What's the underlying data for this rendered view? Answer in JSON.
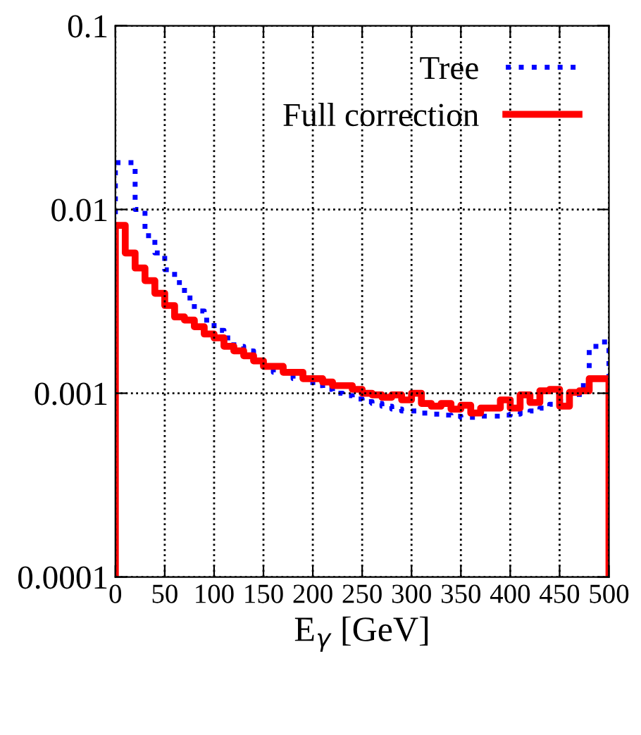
{
  "chart_data": {
    "type": "histogram",
    "xlabel": "E$_{γ}$ [GeV]",
    "bins": [
      0,
      10,
      20,
      30,
      40,
      50,
      60,
      70,
      80,
      90,
      100,
      110,
      120,
      130,
      140,
      150,
      160,
      170,
      180,
      190,
      200,
      210,
      220,
      230,
      240,
      250,
      260,
      270,
      280,
      290,
      300,
      310,
      320,
      330,
      340,
      350,
      360,
      370,
      380,
      390,
      400,
      410,
      420,
      430,
      440,
      450,
      460,
      470,
      480,
      490,
      500
    ],
    "series": [
      {
        "name": "Tree",
        "color": "#0000ff",
        "line_style": "dotted",
        "values": [
          0.018,
          0.018,
          0.01,
          0.0072,
          0.0058,
          0.0047,
          0.004,
          0.0033,
          0.0028,
          0.0025,
          0.0022,
          0.002,
          0.0018,
          0.0017,
          0.0015,
          0.0014,
          0.0013,
          0.0013,
          0.0012,
          0.0012,
          0.0011,
          0.00105,
          0.001,
          0.00097,
          0.00093,
          0.0009,
          0.00088,
          0.00085,
          0.00082,
          0.0008,
          0.0008,
          0.00078,
          0.00077,
          0.00076,
          0.00075,
          0.00074,
          0.00074,
          0.00075,
          0.00075,
          0.00076,
          0.00077,
          0.00078,
          0.0008,
          0.00083,
          0.00087,
          0.0009,
          0.00095,
          0.0011,
          0.0018,
          0.0019
        ]
      },
      {
        "name": "Full correction",
        "color": "#ff0000",
        "line_style": "solid",
        "values": [
          0.0082,
          0.0058,
          0.0048,
          0.0041,
          0.0035,
          0.003,
          0.0026,
          0.0025,
          0.0023,
          0.0021,
          0.002,
          0.0018,
          0.0017,
          0.0016,
          0.0015,
          0.0014,
          0.0014,
          0.0013,
          0.0013,
          0.0012,
          0.0012,
          0.00115,
          0.0011,
          0.0011,
          0.00105,
          0.001,
          0.00098,
          0.00095,
          0.00098,
          0.00092,
          0.001,
          0.00088,
          0.00085,
          0.00088,
          0.00082,
          0.00086,
          0.00078,
          0.00083,
          0.00083,
          0.00092,
          0.00083,
          0.00098,
          0.00089,
          0.00103,
          0.00105,
          0.00085,
          0.00101,
          0.00103,
          0.0012,
          0.0012
        ]
      }
    ],
    "log": "y",
    "xlim": [
      0,
      500
    ],
    "ylim": [
      0.0001,
      0.1
    ],
    "xticks": [
      0,
      50,
      100,
      150,
      200,
      250,
      300,
      350,
      400,
      450,
      500
    ],
    "yticks": [
      0.0001,
      0.001,
      0.01,
      0.1
    ],
    "grid": true,
    "legend": "top right"
  }
}
